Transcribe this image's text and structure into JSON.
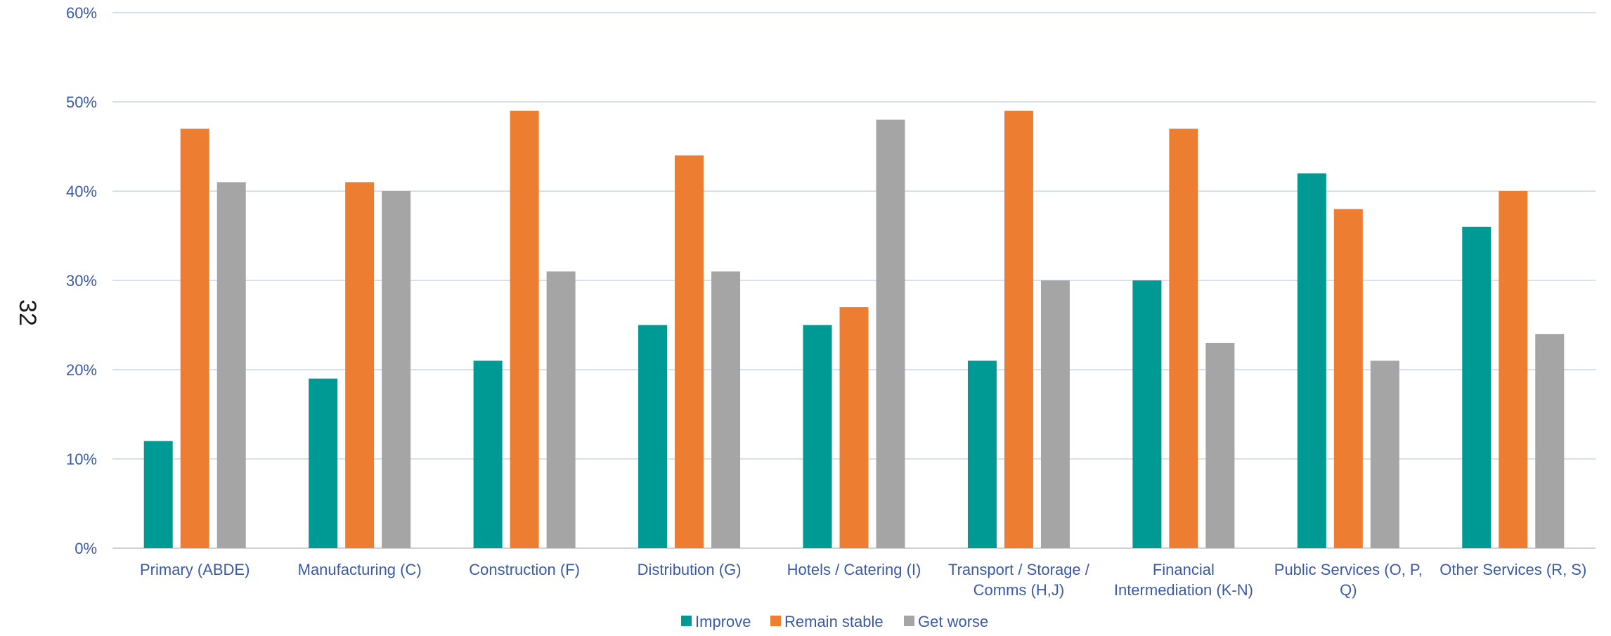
{
  "page_number": "32",
  "colors": {
    "improve": "#009a94",
    "remain_stable": "#ed7d31",
    "get_worse": "#a5a5a5",
    "gridline": "#c9d6e8",
    "text": "#3b5aa6"
  },
  "chart_data": {
    "type": "bar",
    "title": "",
    "xlabel": "",
    "ylabel": "",
    "ylim": [
      0,
      60
    ],
    "y_ticks": [
      "0%",
      "10%",
      "20%",
      "30%",
      "40%",
      "50%",
      "60%"
    ],
    "grid": true,
    "legend_position": "bottom-center",
    "categories": [
      [
        "Primary (ABDE)"
      ],
      [
        "Manufacturing (C)"
      ],
      [
        "Construction (F)"
      ],
      [
        "Distribution (G)"
      ],
      [
        "Hotels / Catering (I)"
      ],
      [
        "Transport / Storage /",
        "Comms (H,J)"
      ],
      [
        "Financial",
        "Intermediation (K-N)"
      ],
      [
        "Public Services (O, P,",
        "Q)"
      ],
      [
        "Other Services (R, S)"
      ]
    ],
    "series": [
      {
        "name": "Improve",
        "color": "#009a94",
        "values": [
          12,
          19,
          21,
          25,
          25,
          21,
          30,
          42,
          36
        ]
      },
      {
        "name": "Remain stable",
        "color": "#ed7d31",
        "values": [
          47,
          41,
          49,
          44,
          27,
          49,
          47,
          38,
          40
        ]
      },
      {
        "name": "Get worse",
        "color": "#a5a5a5",
        "values": [
          41,
          40,
          31,
          31,
          48,
          30,
          23,
          21,
          24
        ]
      }
    ]
  }
}
